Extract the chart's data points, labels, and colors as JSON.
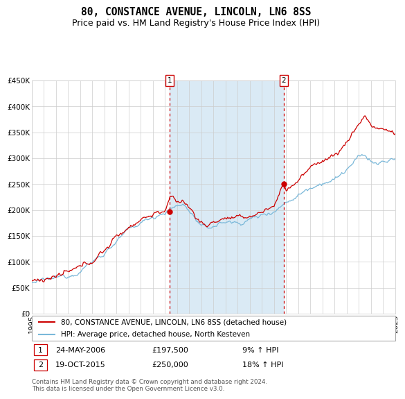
{
  "title": "80, CONSTANCE AVENUE, LINCOLN, LN6 8SS",
  "subtitle": "Price paid vs. HM Land Registry's House Price Index (HPI)",
  "legend_line1": "80, CONSTANCE AVENUE, LINCOLN, LN6 8SS (detached house)",
  "legend_line2": "HPI: Average price, detached house, North Kesteven",
  "annotation1_label": "1",
  "annotation1_date": "24-MAY-2006",
  "annotation1_price": "£197,500",
  "annotation1_hpi": "9% ↑ HPI",
  "annotation2_label": "2",
  "annotation2_date": "19-OCT-2015",
  "annotation2_price": "£250,000",
  "annotation2_hpi": "18% ↑ HPI",
  "footer": "Contains HM Land Registry data © Crown copyright and database right 2024.\nThis data is licensed under the Open Government Licence v3.0.",
  "hpi_color": "#7ab8d9",
  "price_color": "#cc0000",
  "dot_color": "#cc0000",
  "shading_color": "#daeaf5",
  "vline_color": "#cc0000",
  "grid_color": "#cccccc",
  "bg_color": "#ffffff",
  "title_fontsize": 10.5,
  "subtitle_fontsize": 9,
  "axis_fontsize": 7.5,
  "ylim": [
    0,
    450000
  ],
  "yticks": [
    0,
    50000,
    100000,
    150000,
    200000,
    250000,
    300000,
    350000,
    400000,
    450000
  ],
  "start_year": 1995,
  "end_year": 2025,
  "sale1_year": 2006.39,
  "sale1_price": 197500,
  "sale2_year": 2015.79,
  "sale2_price": 250000
}
